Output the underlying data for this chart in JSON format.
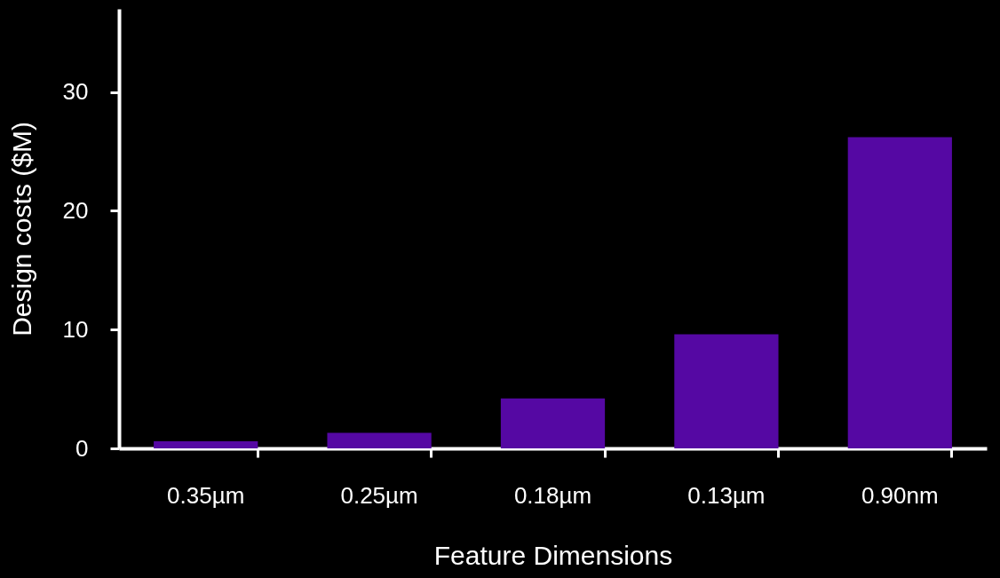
{
  "chart_data": {
    "type": "bar",
    "xlabel": "Feature Dimensions",
    "ylabel": "Design costs ($M)",
    "categories": [
      "0.35µm",
      "0.25µm",
      "0.18µm",
      "0.13µm",
      "0.90nm"
    ],
    "values": [
      0.6,
      1.3,
      4.2,
      9.6,
      26.2
    ],
    "color": "#5508a3",
    "ylim": [
      0,
      37
    ],
    "yticks": [
      0,
      10,
      20,
      30
    ],
    "grid": false
  }
}
